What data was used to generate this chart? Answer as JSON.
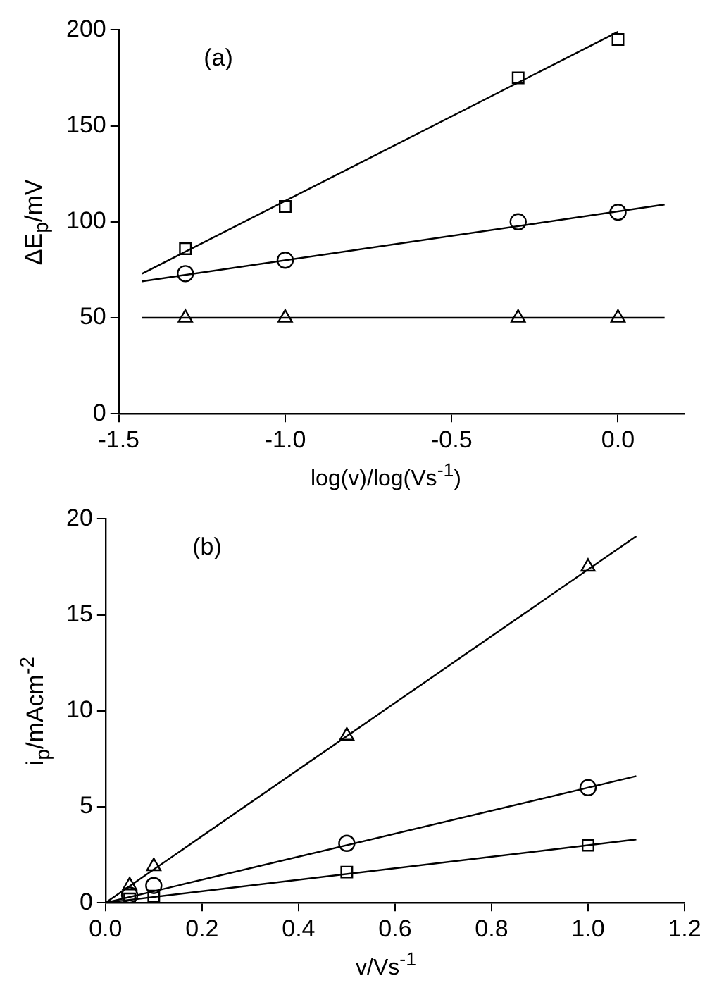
{
  "chart_data": [
    {
      "type": "scatter",
      "xlabel": "log(v)/log(Vs$^{-1}$)",
      "ylabel": "ΔE$_{p}$/mV",
      "annotations": [
        "(a)"
      ],
      "xlim": [
        -1.5,
        0.2
      ],
      "xticks": [
        {
          "value": -1.5,
          "label": "-1.5"
        },
        {
          "value": -1.0,
          "label": "-1.0"
        },
        {
          "value": -0.5,
          "label": "-0.5"
        },
        {
          "value": 0.0,
          "label": "0.0"
        }
      ],
      "ylim": [
        0,
        200
      ],
      "yticks": [
        0,
        50,
        100,
        150,
        200
      ],
      "grid": false,
      "legend": false,
      "series": [
        {
          "type": "scatter",
          "marker": "square",
          "color": "#000000",
          "x": [
            -1.3,
            -1.0,
            -0.3,
            0.0
          ],
          "values": [
            86,
            108,
            175,
            195
          ]
        },
        {
          "type": "scatter",
          "marker": "circle",
          "color": "#000000",
          "x": [
            -1.3,
            -1.0,
            -0.3,
            0.0
          ],
          "values": [
            73,
            80,
            100,
            105
          ]
        },
        {
          "type": "scatter",
          "marker": "triangle",
          "color": "#000000",
          "x": [
            -1.3,
            -1.0,
            -0.3,
            0.0
          ],
          "values": [
            50,
            50,
            50,
            50
          ]
        },
        {
          "type": "line",
          "marker": "none",
          "line_style": "solid",
          "color": "#000000",
          "x": [
            -1.43,
            0.0
          ],
          "values": [
            73,
            199
          ]
        },
        {
          "type": "line",
          "marker": "none",
          "line_style": "solid",
          "color": "#000000",
          "x": [
            -1.43,
            0.14
          ],
          "values": [
            69,
            109
          ]
        },
        {
          "type": "line",
          "marker": "none",
          "line_style": "solid",
          "color": "#000000",
          "x": [
            -1.43,
            0.14
          ],
          "values": [
            50,
            50
          ]
        }
      ]
    },
    {
      "type": "scatter",
      "xlabel": "v/Vs$^{-1}$",
      "ylabel": "i$_{p}$/mAcm$^{-2}$",
      "annotations": [
        "(b)"
      ],
      "xlim": [
        0,
        1.2
      ],
      "xticks": [
        {
          "value": 0,
          "label": "0.0"
        },
        {
          "value": 0.2,
          "label": "0.2"
        },
        {
          "value": 0.4,
          "label": "0.4"
        },
        {
          "value": 0.6,
          "label": "0.6"
        },
        {
          "value": 0.8,
          "label": "0.8"
        },
        {
          "value": 1.0,
          "label": "1.0"
        },
        {
          "value": 1.2,
          "label": "1.2"
        }
      ],
      "ylim": [
        0,
        20
      ],
      "yticks": [
        0,
        5,
        10,
        15,
        20
      ],
      "grid": false,
      "legend": false,
      "series": [
        {
          "type": "scatter",
          "marker": "square",
          "color": "#000000",
          "x": [
            0.05,
            0.1,
            0.5,
            1.0
          ],
          "values": [
            0.2,
            0.35,
            1.6,
            3.0
          ]
        },
        {
          "type": "scatter",
          "marker": "circle",
          "color": "#000000",
          "x": [
            0.05,
            0.1,
            0.5,
            1.0
          ],
          "values": [
            0.4,
            0.9,
            3.1,
            6.0
          ]
        },
        {
          "type": "scatter",
          "marker": "triangle",
          "color": "#000000",
          "x": [
            0.05,
            0.1,
            0.5,
            1.0
          ],
          "values": [
            0.9,
            1.9,
            8.7,
            17.5
          ]
        },
        {
          "type": "line",
          "marker": "none",
          "line_style": "solid",
          "color": "#000000",
          "x": [
            0,
            1.1
          ],
          "values": [
            0,
            3.3
          ]
        },
        {
          "type": "line",
          "marker": "none",
          "line_style": "solid",
          "color": "#000000",
          "x": [
            0,
            1.1
          ],
          "values": [
            0,
            6.6
          ]
        },
        {
          "type": "line",
          "marker": "none",
          "line_style": "solid",
          "color": "#000000",
          "x": [
            0,
            1.1
          ],
          "values": [
            0,
            19.1
          ]
        }
      ]
    }
  ]
}
